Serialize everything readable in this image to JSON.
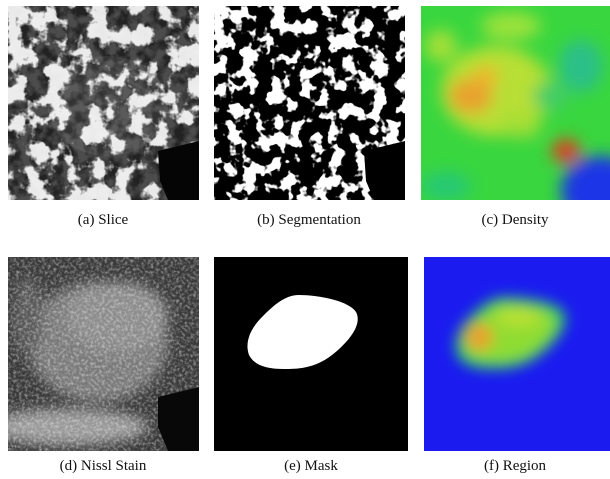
{
  "panels": [
    {
      "id": "a",
      "caption": "(a) Slice"
    },
    {
      "id": "b",
      "caption": "(b) Segmentation"
    },
    {
      "id": "c",
      "caption": "(c) Density"
    },
    {
      "id": "d",
      "caption": "(d) Nissl Stain"
    },
    {
      "id": "e",
      "caption": "(e) Mask"
    },
    {
      "id": "f",
      "caption": "(f) Region"
    }
  ],
  "colors": {
    "mask_background": "#000000",
    "mask_foreground": "#ffffff",
    "heatmap_low": "#1a2ee8",
    "heatmap_mid": "#2fd53a",
    "heatmap_high": "#e8552a",
    "region_background": "#1b1bf0"
  }
}
